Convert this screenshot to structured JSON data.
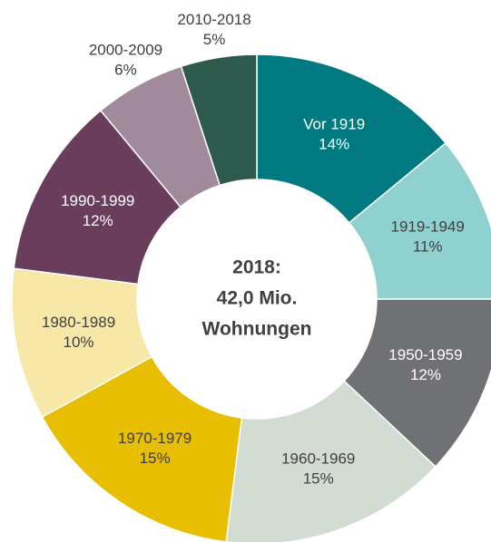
{
  "chart_data": {
    "type": "donut",
    "center_text": [
      "2018:",
      "42,0 Mio.",
      "Wohnungen"
    ],
    "categories": [
      "Vor 1919",
      "1919-1949",
      "1950-1959",
      "1960-1969",
      "1970-1979",
      "1980-1989",
      "1990-1999",
      "2000-2009",
      "2010-2018"
    ],
    "values": [
      14,
      11,
      12,
      15,
      15,
      10,
      12,
      6,
      5
    ],
    "value_labels": [
      "14%",
      "11%",
      "12%",
      "15%",
      "15%",
      "10%",
      "12%",
      "6%",
      "5%"
    ],
    "colors": [
      "#007a80",
      "#8fd1cf",
      "#707175",
      "#d3dcd3",
      "#e8be00",
      "#f7e8a8",
      "#6b3d5c",
      "#a18a9b",
      "#2d5a4c"
    ]
  }
}
